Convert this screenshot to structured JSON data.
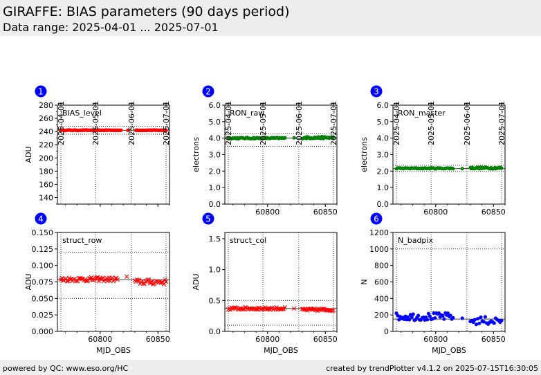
{
  "header": {
    "title": "GIRAFFE: BIAS parameters (90 days period)",
    "subtitle": "Data range: 2025-04-01 ... 2025-07-01"
  },
  "footer": {
    "left": "powered by QC: www.eso.org/HC",
    "right": "created by trendPlotter v4.1.2 on 2025-07-15T16:30:05"
  },
  "colors": {
    "red": "#ff0000",
    "green": "#008000",
    "blue": "#0000ff",
    "badge": "#0000ff"
  },
  "chart_data": [
    {
      "id": "1",
      "type": "scatter",
      "label": "BIAS_level",
      "ylabel": "ADU",
      "xlabel": "",
      "marker": "dot",
      "color": "#ff0000",
      "xlim": [
        60763,
        60860
      ],
      "ylim": [
        130,
        280
      ],
      "yticks": [
        140,
        160,
        180,
        200,
        220,
        240,
        260,
        280
      ],
      "xticks": [
        60800,
        60850
      ],
      "show_xticklabels": false,
      "top_dates": [
        "2025-04-01",
        "2025-05-01",
        "2025-06-01",
        "2025-07-01"
      ],
      "top_dates_mjd": [
        60766,
        60796,
        60827,
        60857
      ],
      "hlines": [
        {
          "y": 242,
          "style": "solid"
        },
        {
          "y": 236,
          "style": "dotted"
        },
        {
          "y": 248,
          "style": "dotted"
        }
      ],
      "segments": [
        {
          "x0": 60766,
          "x1": 60818,
          "n": 60,
          "y": 242,
          "amp": 0.4
        },
        {
          "x0": 60824,
          "x1": 60824,
          "n": 1,
          "y": 242,
          "amp": 0
        },
        {
          "x0": 60831,
          "x1": 60857,
          "n": 36,
          "y": 242,
          "amp": 0.4
        }
      ]
    },
    {
      "id": "2",
      "type": "scatter",
      "label": "RON_raw",
      "ylabel": "electrons",
      "xlabel": "",
      "marker": "dot",
      "color": "#008000",
      "xlim": [
        60763,
        60860
      ],
      "ylim": [
        0.0,
        6.0
      ],
      "yticks": [
        0.0,
        1.0,
        2.0,
        3.0,
        4.0,
        5.0,
        6.0
      ],
      "ydec": 1,
      "xticks": [
        60800,
        60850
      ],
      "show_xticklabels": true,
      "top_dates": [
        "2025-04-01",
        "2025-05-01",
        "2025-06-01",
        "2025-07-01"
      ],
      "top_dates_mjd": [
        60766,
        60796,
        60827,
        60857
      ],
      "hlines": [
        {
          "y": 4.0,
          "style": "solid"
        },
        {
          "y": 3.5,
          "style": "dotted"
        },
        {
          "y": 4.3,
          "style": "dotted"
        }
      ],
      "segments": [
        {
          "x0": 60766,
          "x1": 60815,
          "n": 55,
          "y": 4.0,
          "amp": 0.04
        },
        {
          "x0": 60823,
          "x1": 60823,
          "n": 1,
          "y": 4.02,
          "amp": 0
        },
        {
          "x0": 60830,
          "x1": 60857,
          "n": 38,
          "y": 4.03,
          "amp": 0.06
        }
      ]
    },
    {
      "id": "3",
      "type": "scatter",
      "label": "RON_master",
      "ylabel": "electrons",
      "xlabel": "",
      "marker": "dot",
      "color": "#008000",
      "xlim": [
        60763,
        60860
      ],
      "ylim": [
        0.0,
        6.0
      ],
      "yticks": [
        0.0,
        1.0,
        2.0,
        3.0,
        4.0,
        5.0,
        6.0
      ],
      "ydec": 1,
      "xticks": [
        60800,
        60850
      ],
      "show_xticklabels": true,
      "top_dates": [
        "2025-04-01",
        "2025-05-01",
        "2025-06-01",
        "2025-07-01"
      ],
      "top_dates_mjd": [
        60766,
        60796,
        60827,
        60857
      ],
      "hlines": [
        {
          "y": 2.15,
          "style": "solid"
        },
        {
          "y": 1.98,
          "style": "dotted"
        },
        {
          "y": 2.35,
          "style": "dotted"
        }
      ],
      "segments": [
        {
          "x0": 60766,
          "x1": 60815,
          "n": 50,
          "y": 2.17,
          "amp": 0.03
        },
        {
          "x0": 60823,
          "x1": 60823,
          "n": 1,
          "y": 2.15,
          "amp": 0
        },
        {
          "x0": 60830,
          "x1": 60857,
          "n": 34,
          "y": 2.19,
          "amp": 0.05
        }
      ]
    },
    {
      "id": "4",
      "type": "scatter",
      "label": "struct_row",
      "ylabel": "ADU",
      "xlabel": "MJD_OBS",
      "marker": "x",
      "color": "#ff0000",
      "xlim": [
        60763,
        60860
      ],
      "ylim": [
        0.0,
        0.15
      ],
      "yticks": [
        0.0,
        0.025,
        0.05,
        0.075,
        0.1,
        0.125,
        0.15
      ],
      "ydec": 3,
      "xticks": [
        60800,
        60850
      ],
      "show_xticklabels": true,
      "top_dates": [],
      "top_dates_mjd": [
        60766,
        60796,
        60827,
        60857
      ],
      "hlines": [
        {
          "y": 0.078,
          "style": "solid"
        },
        {
          "y": 0.05,
          "style": "dotted"
        },
        {
          "y": 0.12,
          "style": "dotted"
        }
      ],
      "segments": [
        {
          "x0": 60766,
          "x1": 60815,
          "n": 55,
          "y": 0.079,
          "amp": 0.003
        },
        {
          "x0": 60823,
          "x1": 60823,
          "n": 1,
          "y": 0.083,
          "amp": 0
        },
        {
          "x0": 60830,
          "x1": 60857,
          "n": 30,
          "y": 0.075,
          "amp": 0.004
        }
      ]
    },
    {
      "id": "5",
      "type": "scatter",
      "label": "struct_col",
      "ylabel": "ADU",
      "xlabel": "MJD_OBS",
      "marker": "x",
      "color": "#ff0000",
      "xlim": [
        60763,
        60860
      ],
      "ylim": [
        0.0,
        1.6
      ],
      "yticks": [
        0.0,
        0.5,
        1.0,
        1.5
      ],
      "ydec": 1,
      "xticks": [
        60800,
        60850
      ],
      "show_xticklabels": true,
      "top_dates": [],
      "top_dates_mjd": [
        60766,
        60796,
        60827,
        60857
      ],
      "hlines": [
        {
          "y": 0.37,
          "style": "solid"
        },
        {
          "y": 0.1,
          "style": "dotted"
        },
        {
          "y": 0.5,
          "style": "dotted"
        }
      ],
      "segments": [
        {
          "x0": 60766,
          "x1": 60815,
          "n": 55,
          "y": 0.37,
          "amp": 0.02
        },
        {
          "x0": 60823,
          "x1": 60823,
          "n": 1,
          "y": 0.37,
          "amp": 0
        },
        {
          "x0": 60830,
          "x1": 60857,
          "n": 32,
          "y": 0.35,
          "amp": 0.02
        }
      ]
    },
    {
      "id": "6",
      "type": "scatter",
      "label": "N_badpix",
      "ylabel": "N",
      "xlabel": "MJD_OBS",
      "marker": "dot",
      "color": "#0000ff",
      "xlim": [
        60763,
        60860
      ],
      "ylim": [
        0,
        1200
      ],
      "yticks": [
        0,
        200,
        400,
        600,
        800,
        1000,
        1200
      ],
      "ydec": 0,
      "xticks": [
        60800,
        60850
      ],
      "show_xticklabels": true,
      "top_dates": [],
      "top_dates_mjd": [
        60766,
        60796,
        60827,
        60857
      ],
      "hlines": [
        {
          "y": 150,
          "style": "solid"
        },
        {
          "y": 1000,
          "style": "dotted"
        }
      ],
      "segments": [
        {
          "x0": 60766,
          "x1": 60815,
          "n": 45,
          "y": 180,
          "amp": 45
        },
        {
          "x0": 60823,
          "x1": 60823,
          "n": 1,
          "y": 160,
          "amp": 0
        },
        {
          "x0": 60830,
          "x1": 60857,
          "n": 22,
          "y": 130,
          "amp": 50
        }
      ]
    }
  ]
}
